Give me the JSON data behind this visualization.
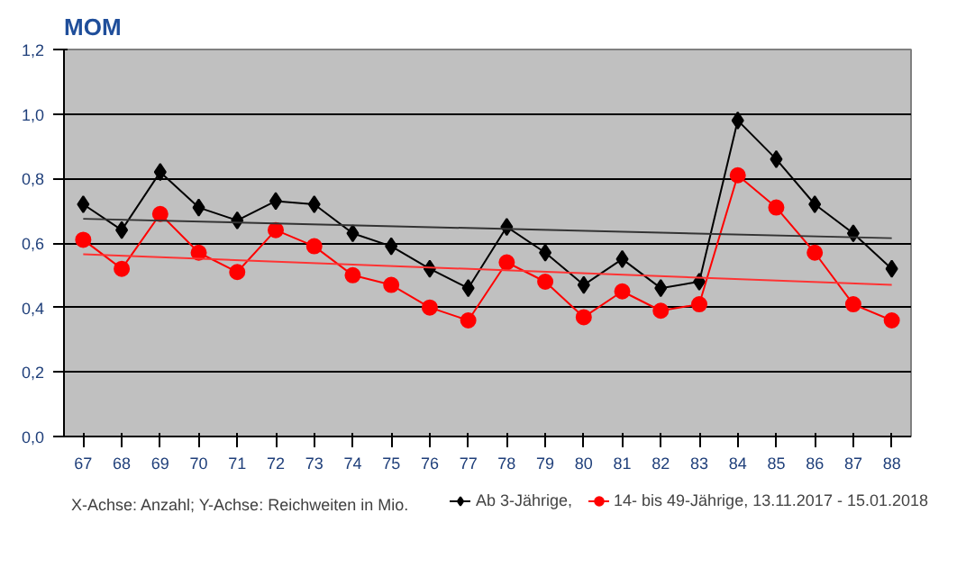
{
  "chart_data": {
    "type": "line",
    "title": "MOM",
    "annotations": [
      "X-Achse: Anzahl; Y-Achse: Reichweiten in Mio."
    ],
    "categories": [
      "67",
      "68",
      "69",
      "70",
      "71",
      "72",
      "73",
      "74",
      "75",
      "76",
      "77",
      "78",
      "79",
      "80",
      "81",
      "82",
      "83",
      "84",
      "85",
      "86",
      "87",
      "88"
    ],
    "ylim": [
      0,
      1.2
    ],
    "yticks": [
      {
        "value": 0,
        "label": "0,0"
      },
      {
        "value": 0.2,
        "label": "0,2"
      },
      {
        "value": 0.4,
        "label": "0,4"
      },
      {
        "value": 0.6,
        "label": "0,6"
      },
      {
        "value": 0.8,
        "label": "0,8"
      },
      {
        "value": 1.0,
        "label": "1,0"
      },
      {
        "value": 1.2,
        "label": "1,2"
      }
    ],
    "grid": "y",
    "legend": "bottom right",
    "line_style": "solid",
    "series": [
      {
        "name": "Ab 3-Jährige,",
        "color": "#000000",
        "marker": "diamond",
        "values": [
          0.72,
          0.64,
          0.82,
          0.71,
          0.67,
          0.73,
          0.72,
          0.63,
          0.59,
          0.52,
          0.46,
          0.65,
          0.57,
          0.47,
          0.55,
          0.46,
          0.48,
          0.98,
          0.86,
          0.72,
          0.63,
          0.52
        ]
      },
      {
        "name": "14- bis 49-Jährige, 13.11.2017 - 15.01.2018",
        "color": "#ff0000",
        "marker": "circle",
        "values": [
          0.61,
          0.52,
          0.69,
          0.57,
          0.51,
          0.64,
          0.59,
          0.5,
          0.47,
          0.4,
          0.36,
          0.54,
          0.48,
          0.37,
          0.45,
          0.39,
          0.41,
          0.81,
          0.71,
          0.57,
          0.41,
          0.36
        ]
      },
      {
        "type": "line",
        "color": "#333333",
        "marker": "none",
        "x": [
          "67",
          "88"
        ],
        "values": [
          0.675,
          0.615
        ]
      },
      {
        "type": "line",
        "color": "#ff3333",
        "marker": "none",
        "x": [
          "67",
          "88"
        ],
        "values": [
          0.565,
          0.47
        ]
      }
    ]
  }
}
